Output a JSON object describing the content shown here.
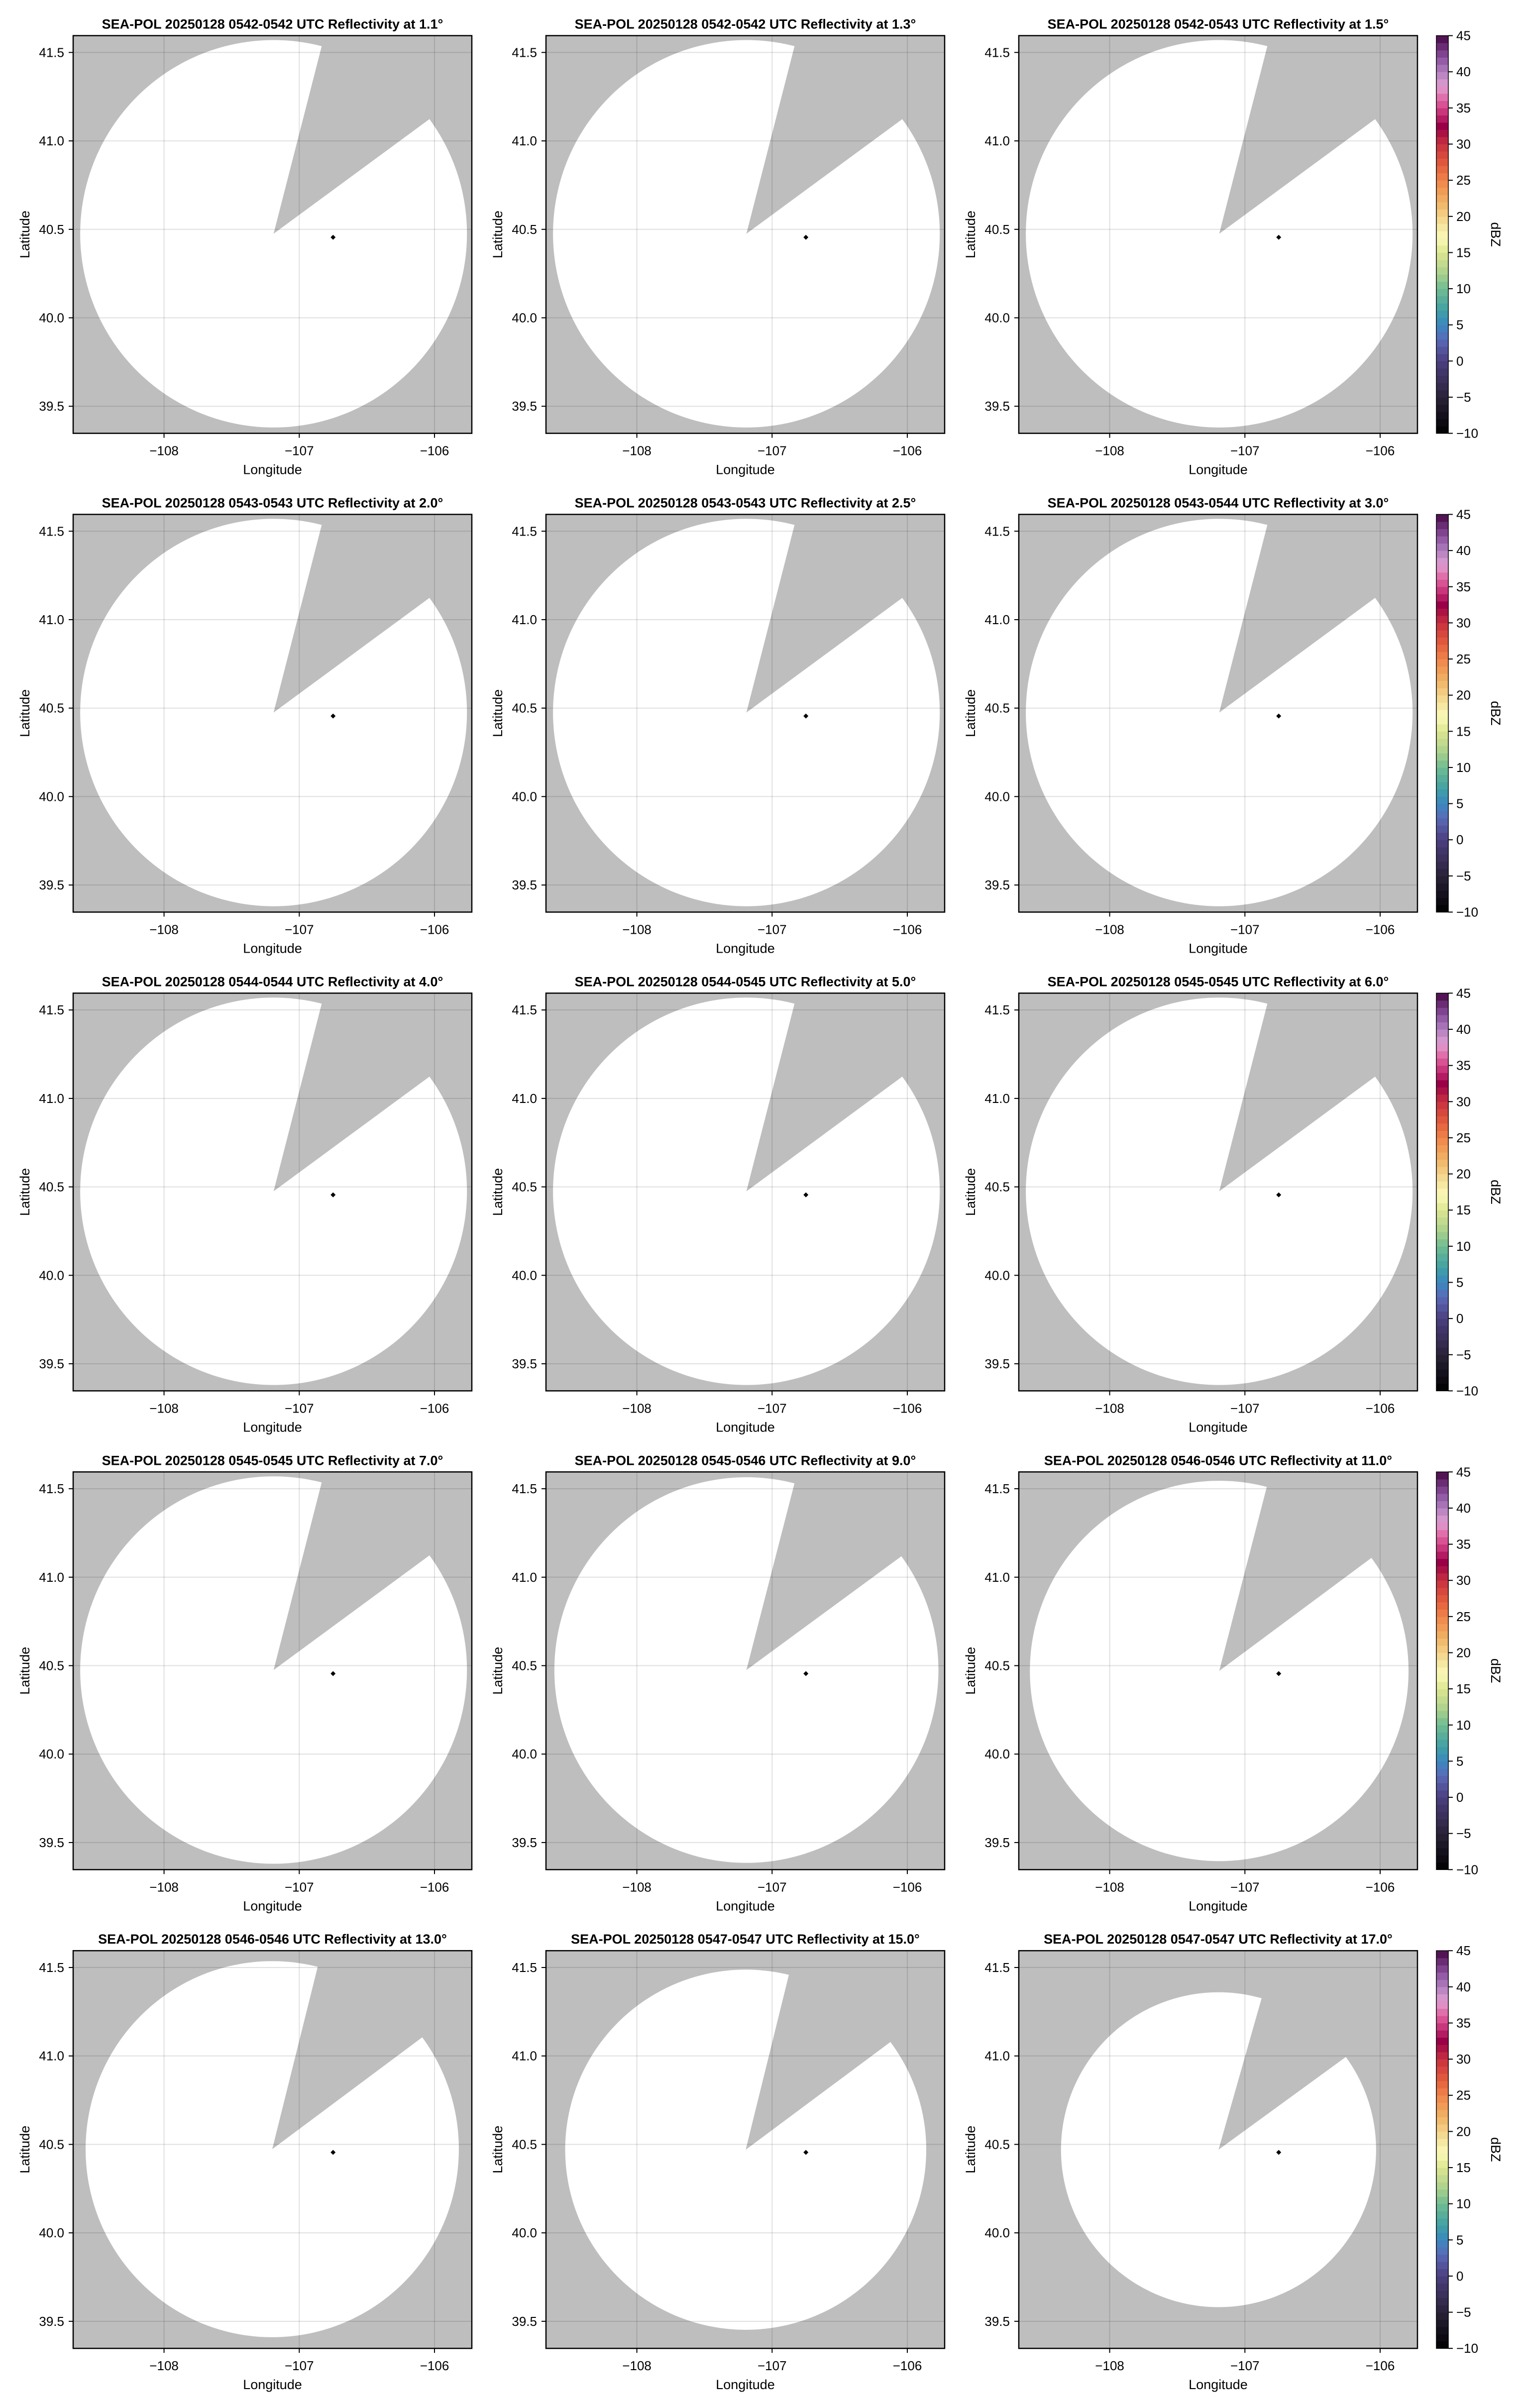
{
  "figure_layout": "5 rows x 3 columns",
  "chart_data": [
    {
      "type": "heatmap",
      "title": "SEA-POL 20250128 0542-0542 UTC Reflectivity at 1.1°",
      "xlabel": "Longitude",
      "ylabel": "Latitude",
      "xlim": [
        -108.672,
        -105.724
      ],
      "ylim": [
        39.347,
        41.595
      ],
      "xticks": [
        -108,
        -107,
        -106
      ],
      "xtick_labels": [
        "−108",
        "−107",
        "−106"
      ],
      "yticks": [
        39.5,
        40.0,
        40.5,
        41.0,
        41.5
      ],
      "ytick_labels": [
        "39.5",
        "40.0",
        "40.5",
        "41.0",
        "41.5"
      ],
      "grid": true,
      "echo_values": "none",
      "coverage": {
        "center": [
          -107.19,
          40.475
        ],
        "extent_deg": [
          1.43,
          1.095
        ],
        "gap_edge_1": [
          -106.838,
          41.524
        ],
        "gap_edge_2": [
          -106.05,
          41.116
        ]
      },
      "marker": [
        -106.75,
        40.455
      ]
    },
    {
      "type": "heatmap",
      "title": "SEA-POL 20250128 0542-0542 UTC Reflectivity at 1.3°",
      "xlabel": "Longitude",
      "ylabel": "Latitude",
      "xlim": [
        -108.672,
        -105.724
      ],
      "ylim": [
        39.347,
        41.595
      ],
      "xticks": [
        -108,
        -107,
        -106
      ],
      "xtick_labels": [
        "−108",
        "−107",
        "−106"
      ],
      "yticks": [
        39.5,
        40.0,
        40.5,
        41.0,
        41.5
      ],
      "ytick_labels": [
        "39.5",
        "40.0",
        "40.5",
        "41.0",
        "41.5"
      ],
      "grid": true,
      "echo_values": "none",
      "coverage": {
        "center": [
          -107.19,
          40.475
        ],
        "extent_deg": [
          1.43,
          1.095
        ],
        "gap_edge_1": [
          -106.838,
          41.524
        ],
        "gap_edge_2": [
          -106.05,
          41.116
        ]
      },
      "marker": [
        -106.75,
        40.455
      ]
    },
    {
      "type": "heatmap",
      "title": "SEA-POL 20250128 0542-0543 UTC Reflectivity at 1.5°",
      "xlabel": "Longitude",
      "ylabel": "Latitude",
      "xlim": [
        -108.672,
        -105.724
      ],
      "ylim": [
        39.347,
        41.595
      ],
      "xticks": [
        -108,
        -107,
        -106
      ],
      "xtick_labels": [
        "−108",
        "−107",
        "−106"
      ],
      "yticks": [
        39.5,
        40.0,
        40.5,
        41.0,
        41.5
      ],
      "ytick_labels": [
        "39.5",
        "40.0",
        "40.5",
        "41.0",
        "41.5"
      ],
      "grid": true,
      "echo_values": "none",
      "coverage": {
        "center": [
          -107.19,
          40.475
        ],
        "extent_deg": [
          1.43,
          1.095
        ],
        "gap_edge_1": [
          -106.838,
          41.524
        ],
        "gap_edge_2": [
          -106.05,
          41.116
        ]
      },
      "marker": [
        -106.75,
        40.455
      ]
    },
    {
      "type": "heatmap",
      "title": "SEA-POL 20250128 0543-0543 UTC Reflectivity at 2.0°",
      "xlabel": "Longitude",
      "ylabel": "Latitude",
      "xlim": [
        -108.672,
        -105.724
      ],
      "ylim": [
        39.347,
        41.595
      ],
      "xticks": [
        -108,
        -107,
        -106
      ],
      "xtick_labels": [
        "−108",
        "−107",
        "−106"
      ],
      "yticks": [
        39.5,
        40.0,
        40.5,
        41.0,
        41.5
      ],
      "ytick_labels": [
        "39.5",
        "40.0",
        "40.5",
        "41.0",
        "41.5"
      ],
      "grid": true,
      "echo_values": "none",
      "coverage": {
        "center": [
          -107.19,
          40.475
        ],
        "extent_deg": [
          1.43,
          1.095
        ],
        "gap_edge_1": [
          -106.838,
          41.524
        ],
        "gap_edge_2": [
          -106.05,
          41.116
        ]
      },
      "marker": [
        -106.75,
        40.455
      ]
    },
    {
      "type": "heatmap",
      "title": "SEA-POL 20250128 0543-0543 UTC Reflectivity at 2.5°",
      "xlabel": "Longitude",
      "ylabel": "Latitude",
      "xlim": [
        -108.672,
        -105.724
      ],
      "ylim": [
        39.347,
        41.595
      ],
      "xticks": [
        -108,
        -107,
        -106
      ],
      "xtick_labels": [
        "−108",
        "−107",
        "−106"
      ],
      "yticks": [
        39.5,
        40.0,
        40.5,
        41.0,
        41.5
      ],
      "ytick_labels": [
        "39.5",
        "40.0",
        "40.5",
        "41.0",
        "41.5"
      ],
      "grid": true,
      "echo_values": "none",
      "coverage": {
        "center": [
          -107.19,
          40.475
        ],
        "extent_deg": [
          1.43,
          1.095
        ],
        "gap_edge_1": [
          -106.838,
          41.524
        ],
        "gap_edge_2": [
          -106.05,
          41.116
        ]
      },
      "marker": [
        -106.75,
        40.455
      ]
    },
    {
      "type": "heatmap",
      "title": "SEA-POL 20250128 0543-0544 UTC Reflectivity at 3.0°",
      "xlabel": "Longitude",
      "ylabel": "Latitude",
      "xlim": [
        -108.672,
        -105.724
      ],
      "ylim": [
        39.347,
        41.595
      ],
      "xticks": [
        -108,
        -107,
        -106
      ],
      "xtick_labels": [
        "−108",
        "−107",
        "−106"
      ],
      "yticks": [
        39.5,
        40.0,
        40.5,
        41.0,
        41.5
      ],
      "ytick_labels": [
        "39.5",
        "40.0",
        "40.5",
        "41.0",
        "41.5"
      ],
      "grid": true,
      "echo_values": "none",
      "coverage": {
        "center": [
          -107.19,
          40.475
        ],
        "extent_deg": [
          1.43,
          1.095
        ],
        "gap_edge_1": [
          -106.838,
          41.524
        ],
        "gap_edge_2": [
          -106.05,
          41.116
        ]
      },
      "marker": [
        -106.75,
        40.455
      ]
    },
    {
      "type": "heatmap",
      "title": "SEA-POL 20250128 0544-0544 UTC Reflectivity at 4.0°",
      "xlabel": "Longitude",
      "ylabel": "Latitude",
      "xlim": [
        -108.672,
        -105.724
      ],
      "ylim": [
        39.347,
        41.595
      ],
      "xticks": [
        -108,
        -107,
        -106
      ],
      "xtick_labels": [
        "−108",
        "−107",
        "−106"
      ],
      "yticks": [
        39.5,
        40.0,
        40.5,
        41.0,
        41.5
      ],
      "ytick_labels": [
        "39.5",
        "40.0",
        "40.5",
        "41.0",
        "41.5"
      ],
      "grid": true,
      "echo_values": "none",
      "coverage": {
        "center": [
          -107.19,
          40.475
        ],
        "extent_deg": [
          1.43,
          1.095
        ],
        "gap_edge_1": [
          -106.838,
          41.524
        ],
        "gap_edge_2": [
          -106.05,
          41.116
        ]
      },
      "marker": [
        -106.75,
        40.455
      ]
    },
    {
      "type": "heatmap",
      "title": "SEA-POL 20250128 0544-0545 UTC Reflectivity at 5.0°",
      "xlabel": "Longitude",
      "ylabel": "Latitude",
      "xlim": [
        -108.672,
        -105.724
      ],
      "ylim": [
        39.347,
        41.595
      ],
      "xticks": [
        -108,
        -107,
        -106
      ],
      "xtick_labels": [
        "−108",
        "−107",
        "−106"
      ],
      "yticks": [
        39.5,
        40.0,
        40.5,
        41.0,
        41.5
      ],
      "ytick_labels": [
        "39.5",
        "40.0",
        "40.5",
        "41.0",
        "41.5"
      ],
      "grid": true,
      "echo_values": "none",
      "coverage": {
        "center": [
          -107.19,
          40.475
        ],
        "extent_deg": [
          1.43,
          1.095
        ],
        "gap_edge_1": [
          -106.838,
          41.524
        ],
        "gap_edge_2": [
          -106.05,
          41.116
        ]
      },
      "marker": [
        -106.75,
        40.455
      ]
    },
    {
      "type": "heatmap",
      "title": "SEA-POL 20250128 0545-0545 UTC Reflectivity at 6.0°",
      "xlabel": "Longitude",
      "ylabel": "Latitude",
      "xlim": [
        -108.672,
        -105.724
      ],
      "ylim": [
        39.347,
        41.595
      ],
      "xticks": [
        -108,
        -107,
        -106
      ],
      "xtick_labels": [
        "−108",
        "−107",
        "−106"
      ],
      "yticks": [
        39.5,
        40.0,
        40.5,
        41.0,
        41.5
      ],
      "ytick_labels": [
        "39.5",
        "40.0",
        "40.5",
        "41.0",
        "41.5"
      ],
      "grid": true,
      "echo_values": "none",
      "coverage": {
        "center": [
          -107.19,
          40.475
        ],
        "extent_deg": [
          1.43,
          1.095
        ],
        "gap_edge_1": [
          -106.838,
          41.524
        ],
        "gap_edge_2": [
          -106.05,
          41.116
        ]
      },
      "marker": [
        -106.75,
        40.455
      ]
    },
    {
      "type": "heatmap",
      "title": "SEA-POL 20250128 0545-0545 UTC Reflectivity at 7.0°",
      "xlabel": "Longitude",
      "ylabel": "Latitude",
      "xlim": [
        -108.672,
        -105.724
      ],
      "ylim": [
        39.347,
        41.595
      ],
      "xticks": [
        -108,
        -107,
        -106
      ],
      "xtick_labels": [
        "−108",
        "−107",
        "−106"
      ],
      "yticks": [
        39.5,
        40.0,
        40.5,
        41.0,
        41.5
      ],
      "ytick_labels": [
        "39.5",
        "40.0",
        "40.5",
        "41.0",
        "41.5"
      ],
      "grid": true,
      "echo_values": "none",
      "coverage": {
        "center": [
          -107.19,
          40.475
        ],
        "extent_deg": [
          1.43,
          1.095
        ],
        "gap_edge_1": [
          -106.838,
          41.524
        ],
        "gap_edge_2": [
          -106.05,
          41.116
        ]
      },
      "marker": [
        -106.75,
        40.455
      ]
    },
    {
      "type": "heatmap",
      "title": "SEA-POL 20250128 0545-0546 UTC Reflectivity at 9.0°",
      "xlabel": "Longitude",
      "ylabel": "Latitude",
      "xlim": [
        -108.672,
        -105.724
      ],
      "ylim": [
        39.347,
        41.595
      ],
      "xticks": [
        -108,
        -107,
        -106
      ],
      "xtick_labels": [
        "−108",
        "−107",
        "−106"
      ],
      "yticks": [
        39.5,
        40.0,
        40.5,
        41.0,
        41.5
      ],
      "ytick_labels": [
        "39.5",
        "40.0",
        "40.5",
        "41.0",
        "41.5"
      ],
      "grid": true,
      "echo_values": "none",
      "coverage": {
        "center": [
          -107.19,
          40.475
        ],
        "extent_deg": [
          1.42,
          1.09
        ],
        "gap_edge_1": [
          -106.838,
          41.52
        ],
        "gap_edge_2": [
          -106.055,
          41.112
        ]
      },
      "marker": [
        -106.75,
        40.455
      ]
    },
    {
      "type": "heatmap",
      "title": "SEA-POL 20250128 0546-0546 UTC Reflectivity at 11.0°",
      "xlabel": "Longitude",
      "ylabel": "Latitude",
      "xlim": [
        -108.672,
        -105.724
      ],
      "ylim": [
        39.347,
        41.595
      ],
      "xticks": [
        -108,
        -107,
        -106
      ],
      "xtick_labels": [
        "−108",
        "−107",
        "−106"
      ],
      "yticks": [
        39.5,
        40.0,
        40.5,
        41.0,
        41.5
      ],
      "ytick_labels": [
        "39.5",
        "40.0",
        "40.5",
        "41.0",
        "41.5"
      ],
      "grid": true,
      "echo_values": "none",
      "coverage": {
        "center": [
          -107.19,
          40.47
        ],
        "extent_deg": [
          1.4,
          1.075
        ],
        "gap_edge_1": [
          -106.84,
          41.505
        ],
        "gap_edge_2": [
          -106.07,
          41.106
        ]
      },
      "marker": [
        -106.75,
        40.455
      ]
    },
    {
      "type": "heatmap",
      "title": "SEA-POL 20250128 0546-0546 UTC Reflectivity at 13.0°",
      "xlabel": "Longitude",
      "ylabel": "Latitude",
      "xlim": [
        -108.672,
        -105.724
      ],
      "ylim": [
        39.347,
        41.595
      ],
      "xticks": [
        -108,
        -107,
        -106
      ],
      "xtick_labels": [
        "−108",
        "−107",
        "−106"
      ],
      "yticks": [
        39.5,
        40.0,
        40.5,
        41.0,
        41.5
      ],
      "ytick_labels": [
        "39.5",
        "40.0",
        "40.5",
        "41.0",
        "41.5"
      ],
      "grid": true,
      "echo_values": "none",
      "coverage": {
        "center": [
          -107.2,
          40.473
        ],
        "extent_deg": [
          1.38,
          1.063
        ],
        "gap_edge_1": [
          -106.865,
          41.5
        ],
        "gap_edge_2": [
          -106.1,
          41.1
        ]
      },
      "marker": [
        -106.75,
        40.455
      ]
    },
    {
      "type": "heatmap",
      "title": "SEA-POL 20250128 0547-0547 UTC Reflectivity at 15.0°",
      "xlabel": "Longitude",
      "ylabel": "Latitude",
      "xlim": [
        -108.672,
        -105.724
      ],
      "ylim": [
        39.347,
        41.595
      ],
      "xticks": [
        -108,
        -107,
        -106
      ],
      "xtick_labels": [
        "−108",
        "−107",
        "−106"
      ],
      "yticks": [
        39.5,
        40.0,
        40.5,
        41.0,
        41.5
      ],
      "ytick_labels": [
        "39.5",
        "40.0",
        "40.5",
        "41.0",
        "41.5"
      ],
      "grid": true,
      "echo_values": "none",
      "coverage": {
        "center": [
          -107.195,
          40.47
        ],
        "extent_deg": [
          1.335,
          1.018
        ],
        "gap_edge_1": [
          -106.877,
          41.455
        ],
        "gap_edge_2": [
          -106.13,
          41.076
        ]
      },
      "marker": [
        -106.75,
        40.455
      ]
    },
    {
      "type": "heatmap",
      "title": "SEA-POL 20250128 0547-0547 UTC Reflectivity at 17.0°",
      "xlabel": "Longitude",
      "ylabel": "Latitude",
      "xlim": [
        -108.672,
        -105.724
      ],
      "ylim": [
        39.347,
        41.595
      ],
      "xticks": [
        -108,
        -107,
        -106
      ],
      "xtick_labels": [
        "−108",
        "−107",
        "−106"
      ],
      "yticks": [
        39.5,
        40.0,
        40.5,
        41.0,
        41.5
      ],
      "ytick_labels": [
        "39.5",
        "40.0",
        "40.5",
        "41.0",
        "41.5"
      ],
      "grid": true,
      "echo_values": "none",
      "coverage": {
        "center": [
          -107.195,
          40.47
        ],
        "extent_deg": [
          1.165,
          0.89
        ],
        "gap_edge_1": [
          -106.875,
          41.33
        ],
        "gap_edge_2": [
          -106.245,
          40.999
        ]
      },
      "marker": [
        -106.75,
        40.455
      ]
    }
  ],
  "colorbar": {
    "label": "dBZ",
    "range": [
      -10,
      45
    ],
    "levels": 55,
    "ticks": [
      45,
      40,
      35,
      30,
      25,
      20,
      15,
      10,
      5,
      0,
      -5,
      -10
    ],
    "tick_labels": [
      "45",
      "40",
      "35",
      "30",
      "25",
      "20",
      "15",
      "10",
      "5",
      "0",
      "−5",
      "−10"
    ],
    "colormap": [
      [
        -10,
        "#000000"
      ],
      [
        -5,
        "#2a2238"
      ],
      [
        0,
        "#4b3f80"
      ],
      [
        3,
        "#5a6ab8"
      ],
      [
        5,
        "#3a88c0"
      ],
      [
        7,
        "#40a0a4"
      ],
      [
        10,
        "#70bc92"
      ],
      [
        12,
        "#a8d08c"
      ],
      [
        15,
        "#dde68f"
      ],
      [
        17,
        "#fafab8"
      ],
      [
        19,
        "#f5e09a"
      ],
      [
        22,
        "#f0b464"
      ],
      [
        25,
        "#f0844a"
      ],
      [
        27,
        "#e4603c"
      ],
      [
        30,
        "#c83040"
      ],
      [
        32.5,
        "#9a0048"
      ],
      [
        34,
        "#c02870"
      ],
      [
        36,
        "#e060a0"
      ],
      [
        38,
        "#e09ed0"
      ],
      [
        40,
        "#b07fbe"
      ],
      [
        42,
        "#8b4f9e"
      ],
      [
        45,
        "#480848"
      ]
    ]
  },
  "colors": {
    "missing": "#bebebe",
    "no_echo": "#ffffff",
    "grid": "#000000",
    "marker": "#000000"
  }
}
